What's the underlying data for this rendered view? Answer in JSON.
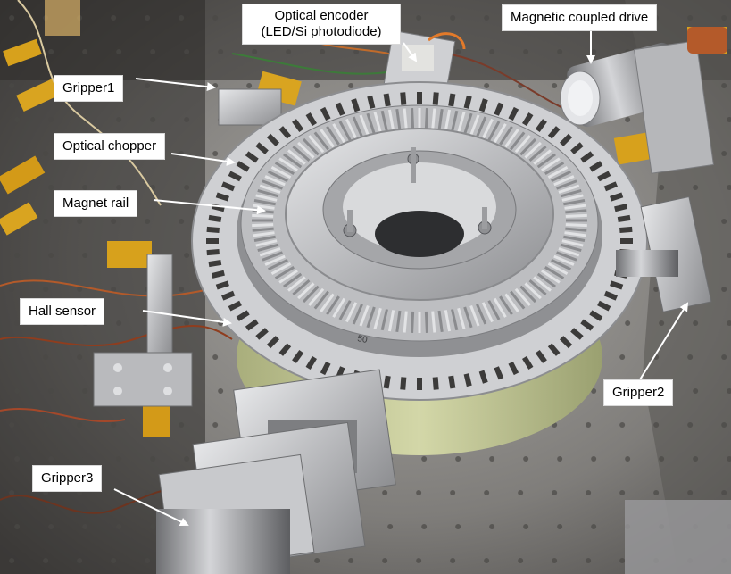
{
  "labels": {
    "optical_encoder_line1": "Optical encoder",
    "optical_encoder_line2": "(LED/Si photodiode)",
    "magnetic_coupled_drive": "Magnetic coupled drive",
    "gripper1": "Gripper1",
    "optical_chopper": "Optical chopper",
    "magnet_rail": "Magnet rail",
    "hall_sensor": "Hall sensor",
    "gripper2": "Gripper2",
    "gripper3": "Gripper3"
  },
  "engraving": "50",
  "colors": {
    "label_bg": "#ffffff",
    "label_text": "#000000",
    "arrow": "#ffffff",
    "aluminum": "#c9cacc",
    "table": "#8d8b88",
    "ring_cover": "#c8cc9a",
    "kapton": "#d7a11c"
  }
}
